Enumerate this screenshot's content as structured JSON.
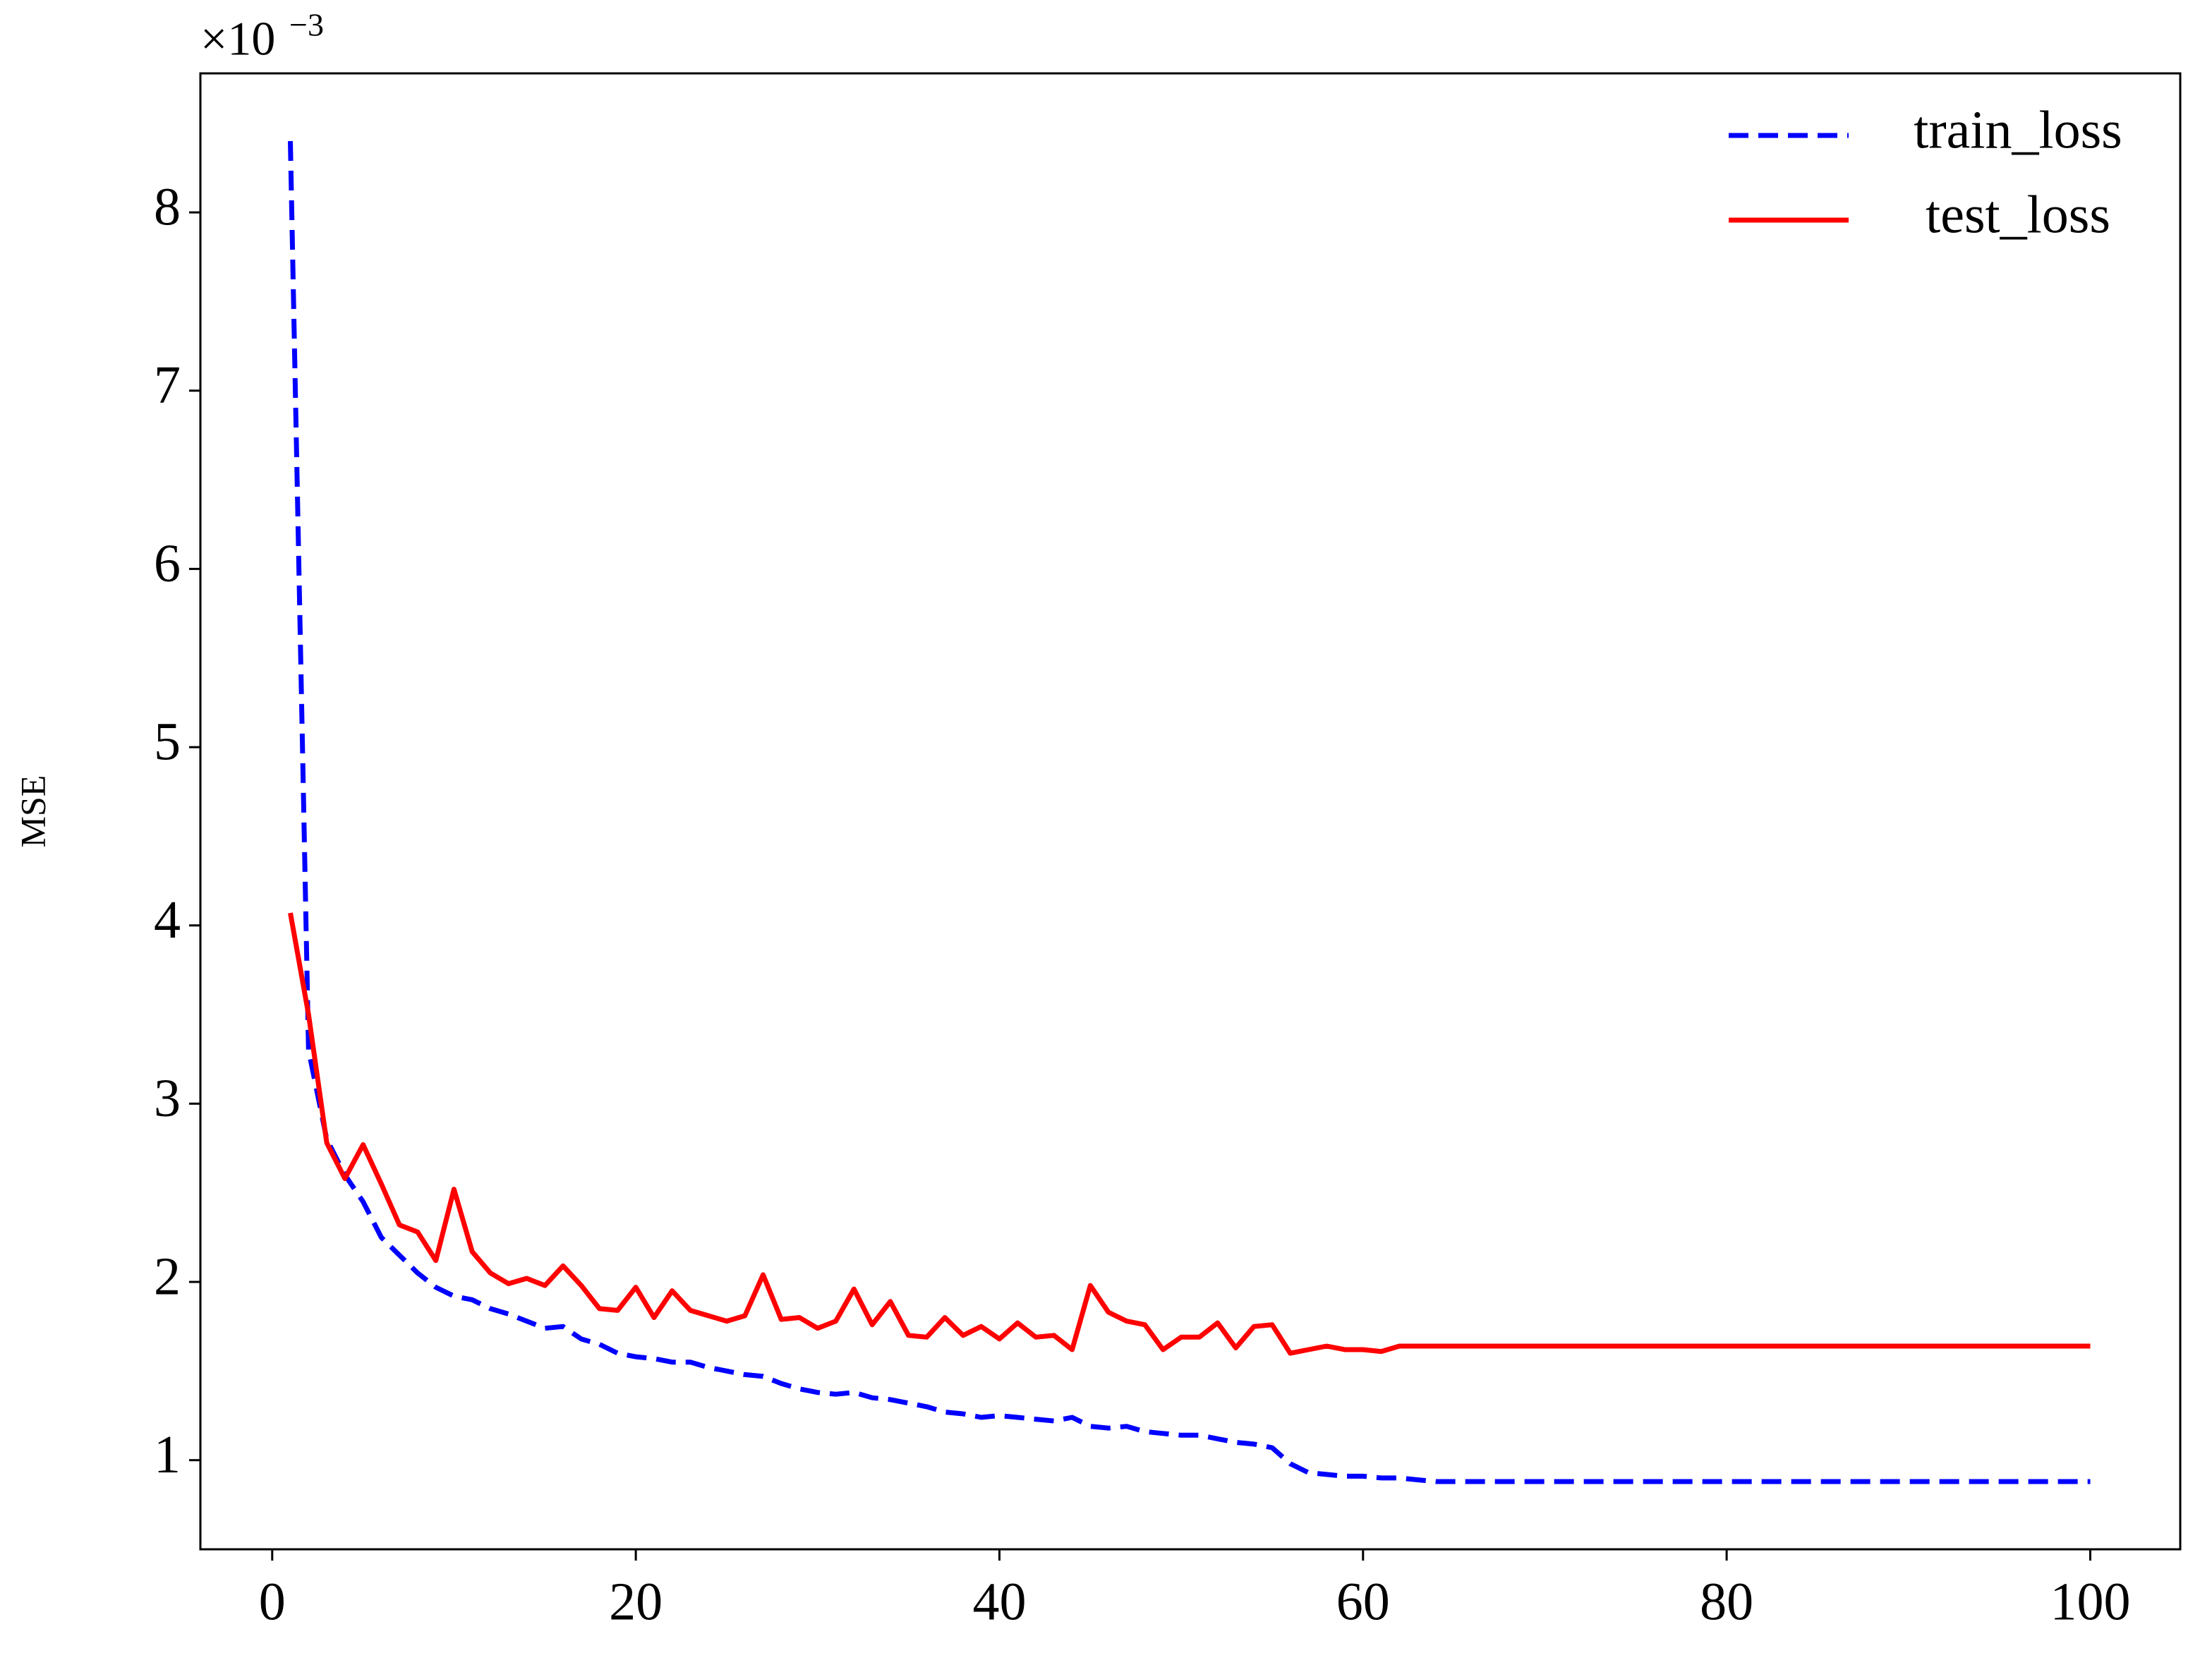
{
  "chart_data": {
    "type": "line",
    "y_label": "MSE",
    "y_offset": {
      "base": "×10",
      "exponent": "−3"
    },
    "x": [
      1,
      2,
      3,
      4,
      5,
      6,
      7,
      8,
      9,
      10,
      11,
      12,
      13,
      14,
      15,
      16,
      17,
      18,
      19,
      20,
      21,
      22,
      23,
      24,
      25,
      26,
      27,
      28,
      29,
      30,
      31,
      32,
      33,
      34,
      35,
      36,
      37,
      38,
      39,
      40,
      41,
      42,
      43,
      44,
      45,
      46,
      47,
      48,
      49,
      50,
      51,
      52,
      53,
      54,
      55,
      56,
      57,
      58,
      59,
      60,
      61,
      62,
      63,
      64,
      65,
      66,
      67,
      68,
      69,
      70,
      71,
      72,
      73,
      74,
      75,
      76,
      77,
      78,
      79,
      80,
      81,
      82,
      83,
      84,
      85,
      86,
      87,
      88,
      89,
      90,
      91,
      92,
      93,
      94,
      95,
      96,
      97,
      98,
      99,
      100
    ],
    "series": [
      {
        "name": "train_loss",
        "color": "#0000ff",
        "linestyle": "dashed",
        "values": [
          8.4,
          3.3,
          2.8,
          2.6,
          2.45,
          2.25,
          2.15,
          2.05,
          1.97,
          1.92,
          1.9,
          1.85,
          1.82,
          1.78,
          1.74,
          1.75,
          1.68,
          1.65,
          1.6,
          1.58,
          1.57,
          1.55,
          1.55,
          1.52,
          1.5,
          1.48,
          1.47,
          1.43,
          1.4,
          1.38,
          1.37,
          1.38,
          1.35,
          1.34,
          1.32,
          1.3,
          1.27,
          1.26,
          1.24,
          1.25,
          1.24,
          1.23,
          1.22,
          1.24,
          1.19,
          1.18,
          1.19,
          1.16,
          1.15,
          1.14,
          1.14,
          1.12,
          1.1,
          1.09,
          1.07,
          0.98,
          0.93,
          0.92,
          0.91,
          0.91,
          0.9,
          0.9,
          0.89,
          0.88,
          0.88,
          0.88,
          0.88,
          0.88,
          0.88,
          0.88,
          0.88,
          0.88,
          0.88,
          0.88,
          0.88,
          0.88,
          0.88,
          0.88,
          0.88,
          0.88,
          0.88,
          0.88,
          0.88,
          0.88,
          0.88,
          0.88,
          0.88,
          0.88,
          0.88,
          0.88,
          0.88,
          0.88,
          0.88,
          0.88,
          0.88,
          0.88,
          0.88,
          0.88,
          0.88,
          0.88
        ]
      },
      {
        "name": "test_loss",
        "color": "#ff0000",
        "linestyle": "solid",
        "values": [
          4.07,
          3.5,
          2.78,
          2.58,
          2.77,
          2.55,
          2.32,
          2.28,
          2.12,
          2.52,
          2.17,
          2.05,
          1.99,
          2.02,
          1.98,
          2.09,
          1.98,
          1.85,
          1.84,
          1.97,
          1.8,
          1.95,
          1.84,
          1.81,
          1.78,
          1.81,
          2.04,
          1.79,
          1.8,
          1.74,
          1.78,
          1.96,
          1.76,
          1.89,
          1.7,
          1.69,
          1.8,
          1.7,
          1.75,
          1.68,
          1.77,
          1.69,
          1.7,
          1.62,
          1.98,
          1.83,
          1.78,
          1.76,
          1.62,
          1.69,
          1.69,
          1.77,
          1.63,
          1.75,
          1.76,
          1.6,
          1.62,
          1.64,
          1.62,
          1.62,
          1.61,
          1.64,
          1.64,
          1.64,
          1.64,
          1.64,
          1.64,
          1.64,
          1.64,
          1.64,
          1.64,
          1.64,
          1.64,
          1.64,
          1.64,
          1.64,
          1.64,
          1.64,
          1.64,
          1.64,
          1.64,
          1.64,
          1.64,
          1.64,
          1.64,
          1.64,
          1.64,
          1.64,
          1.64,
          1.64,
          1.64,
          1.64,
          1.64,
          1.64,
          1.64,
          1.64,
          1.64,
          1.64,
          1.64,
          1.64
        ]
      }
    ],
    "xlim": [
      -3.95,
      104.95
    ],
    "xticks": [
      0,
      20,
      40,
      60,
      80,
      100
    ],
    "ylim": [
      0.5,
      8.78
    ],
    "yticks": [
      1,
      2,
      3,
      4,
      5,
      6,
      7,
      8
    ],
    "grid": false,
    "legend": "upper right"
  }
}
